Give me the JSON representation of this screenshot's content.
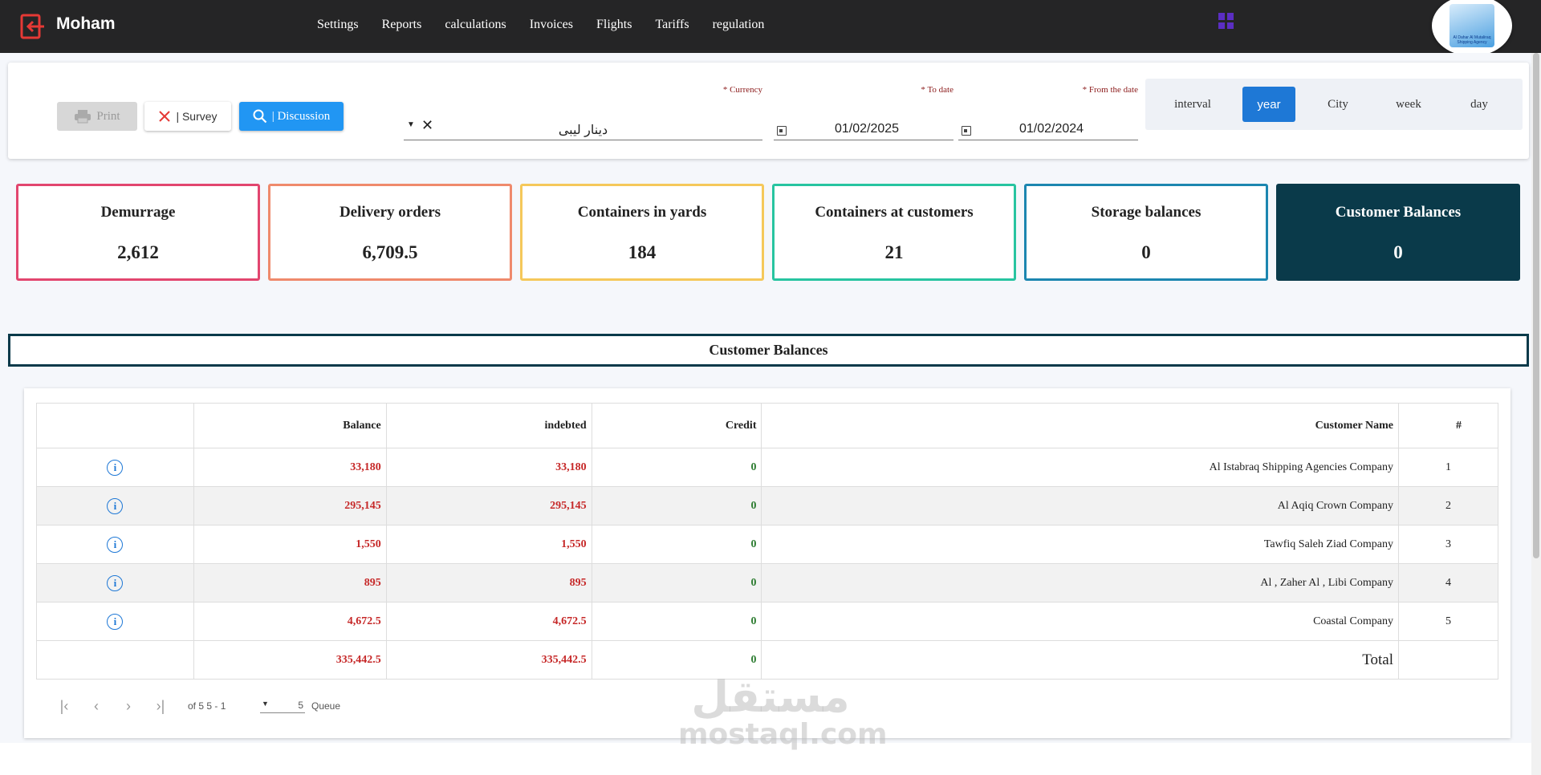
{
  "header": {
    "brand": "Moham",
    "nav": [
      "Settings",
      "Reports",
      "calculations",
      "Invoices",
      "Flights",
      "Tariffs",
      "regulation"
    ],
    "logo_text": "Al Dahar Al Mutaliraq Shipping Agency",
    "colors": {
      "topbar": "#252526",
      "logout_icon": "#e53935",
      "grid_icon": "#5b2ec2"
    }
  },
  "filters": {
    "buttons": {
      "print": "Print",
      "survey": "| Survey",
      "discussion": "| Discussion"
    },
    "currency": {
      "label": "* Currency",
      "value": "دينار ليبى"
    },
    "to_date": {
      "label": "* To date",
      "value": "01/02/2025"
    },
    "from_date": {
      "label": "* From the date",
      "value": "01/02/2024"
    },
    "period_toggles": [
      "interval",
      "year",
      "City",
      "week",
      "day"
    ],
    "active_toggle": "year"
  },
  "stats": [
    {
      "title": "Demurrage",
      "value": "2,612",
      "color": "#e2466f"
    },
    {
      "title": "Delivery orders",
      "value": "6,709.5",
      "color": "#ef8a6c"
    },
    {
      "title": "Containers in yards",
      "value": "184",
      "color": "#f5c85a"
    },
    {
      "title": "Containers at customers",
      "value": "21",
      "color": "#27c4a0"
    },
    {
      "title": "Storage balances",
      "value": "0",
      "color": "#1c86b0"
    },
    {
      "title": "Customer Balances",
      "value": "0",
      "color": "#0a3a4a"
    }
  ],
  "section": {
    "title": "Customer Balances"
  },
  "table": {
    "headers": {
      "balance": "Balance",
      "indebted": "indebted",
      "credit": "Credit",
      "customer_name": "Customer Name",
      "num": "#"
    },
    "rows": [
      {
        "balance": "33,180",
        "indebted": "33,180",
        "credit": "0",
        "customer_name": "Al Istabraq Shipping Agencies Company",
        "num": "1"
      },
      {
        "balance": "295,145",
        "indebted": "295,145",
        "credit": "0",
        "customer_name": "Al Aqiq Crown Company",
        "num": "2"
      },
      {
        "balance": "1,550",
        "indebted": "1,550",
        "credit": "0",
        "customer_name": "Tawfiq Saleh Ziad Company",
        "num": "3"
      },
      {
        "balance": "895",
        "indebted": "895",
        "credit": "0",
        "customer_name": "Al , Zaher Al , Libi Company",
        "num": "4"
      },
      {
        "balance": "4,672.5",
        "indebted": "4,672.5",
        "credit": "0",
        "customer_name": "Coastal Company",
        "num": "5"
      }
    ],
    "total": {
      "label": "Total",
      "balance": "335,442.5",
      "indebted": "335,442.5",
      "credit": "0"
    }
  },
  "pagination": {
    "range": "of 5 5 - 1",
    "page_size": "5",
    "rows_label": "Queue"
  },
  "watermark": {
    "arabic": "مستقل",
    "latin": "mostaql.com"
  }
}
